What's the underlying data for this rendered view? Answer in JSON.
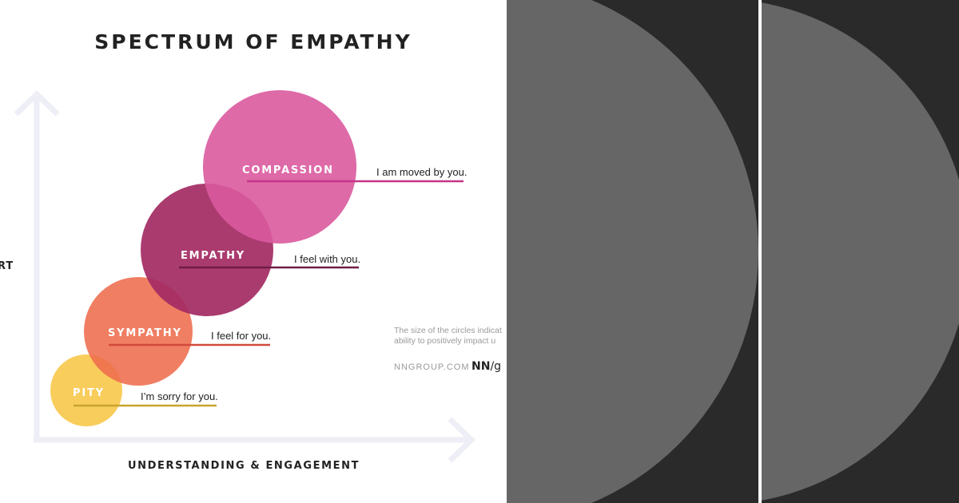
{
  "title": "SPECTRUM OF EMPATHY",
  "y_axis_label": "RT",
  "x_axis_label": "UNDERSTANDING & ENGAGEMENT",
  "stages": [
    {
      "label": "PITY",
      "phrase": "I’m sorry for you.",
      "color": "#F8C440",
      "underline_color": "#C8A52E"
    },
    {
      "label": "SYMPATHY",
      "phrase": "I feel for you.",
      "color": "#EE6C4D",
      "underline_color": "#D14A3B"
    },
    {
      "label": "EMPATHY",
      "phrase": "I feel with you.",
      "color": "#A32A63",
      "underline_color": "#6E1C47"
    },
    {
      "label": "COMPASSION",
      "phrase": "I am moved by you.",
      "color": "#DA5A9F",
      "underline_color": "#C63588"
    }
  ],
  "note": {
    "line1": "The size of the circles indicat",
    "line2": "ability to positively impact u"
  },
  "brand": {
    "site": "NNGROUP.COM",
    "logo_main": "NN",
    "logo_slash": "/g"
  },
  "colors": {
    "axis": "#EEEEF6",
    "dark_panel": "#2A2A2A",
    "dark_disc": "#666666"
  }
}
